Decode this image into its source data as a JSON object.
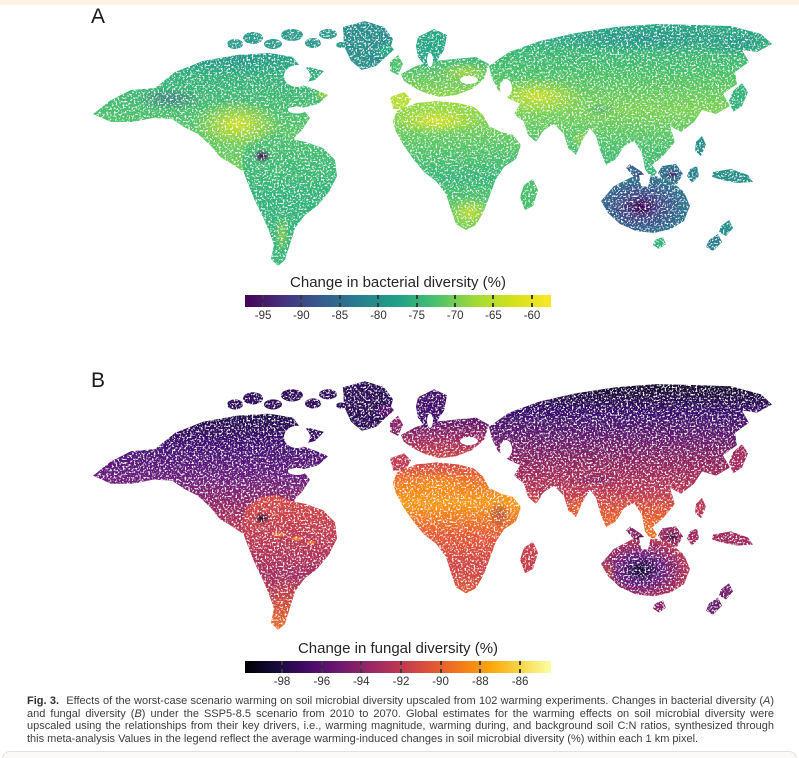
{
  "page": {
    "background_color": "#ffffff",
    "top_band_color": "#fbf4e3"
  },
  "figure": {
    "panel_a": {
      "label": "A",
      "map_alt": "Global map of warming-induced change in soil bacterial diversity (viridis color scale)",
      "colorbar": {
        "title": "Change in bacterial diversity (%)",
        "tick_labels": [
          "-95",
          "-90",
          "-85",
          "-80",
          "-75",
          "-70",
          "-65",
          "-60"
        ],
        "colormap_name": "viridis",
        "gradient_stops": [
          "#440154",
          "#46327e",
          "#365c8d",
          "#277f8e",
          "#1fa187",
          "#4ac16d",
          "#a0da39",
          "#d2e21b",
          "#fde725"
        ]
      }
    },
    "panel_b": {
      "label": "B",
      "map_alt": "Global map of warming-induced change in soil fungal diversity (inferno color scale)",
      "colorbar": {
        "title": "Change in fungal diversity (%)",
        "tick_labels": [
          "-98",
          "-96",
          "-94",
          "-92",
          "-90",
          "-88",
          "-86"
        ],
        "colormap_name": "inferno",
        "gradient_stops": [
          "#000004",
          "#160b39",
          "#420a68",
          "#6a176e",
          "#932667",
          "#bc3754",
          "#dd513a",
          "#f37819",
          "#fca50a",
          "#f6d746",
          "#fcffa4"
        ]
      }
    },
    "caption": {
      "fig_label": "Fig. 3.",
      "segments": [
        {
          "text": " Effects of the worst-case scenario warming on soil microbial diversity upscaled from 102 warming experiments. Changes in bacterial diversity (",
          "italic": false
        },
        {
          "text": "A",
          "italic": true
        },
        {
          "text": ") and fungal diversity (",
          "italic": false
        },
        {
          "text": "B",
          "italic": true
        },
        {
          "text": ") under the SSP5-8.5 scenario from 2010 to 2070. Global estimates for the warming effects on soil microbial diversity were upscaled using the relationships from their key drivers, i.e., warming magnitude, warming during, and background soil C:N ratios, synthesized through this meta-analysis  Values in the legend reflect the average warming-induced changes in soil microbial diversity (%) within each 1 km pixel.",
          "italic": false
        }
      ]
    }
  },
  "chart_data": [
    {
      "type": "heatmap",
      "subtype": "global_choropleth_map",
      "panel": "A",
      "title": "Change in bacterial diversity (%)",
      "colormap": "viridis",
      "colorbar_ticks": [
        -95,
        -90,
        -85,
        -80,
        -75,
        -70,
        -65,
        -60
      ],
      "colorbar_range_approx": [
        -98,
        -57
      ],
      "legend_position": "bottom-center",
      "tick_positions_pct": [
        5.9,
        18.4,
        31.0,
        43.6,
        56.1,
        68.7,
        81.2,
        93.8
      ],
      "regional_estimates": [
        {
          "region": "Arctic and boreal Canada / Siberia",
          "value": -76
        },
        {
          "region": "Central United States",
          "value": -63
        },
        {
          "region": "Sahara and Middle East",
          "value": -60
        },
        {
          "region": "Central Asia (Kazakhstan / Iran)",
          "value": -62
        },
        {
          "region": "Europe",
          "value": -66
        },
        {
          "region": "Amazon basin",
          "value": -70
        },
        {
          "region": "Peruvian Andes dark spot",
          "value": -95
        },
        {
          "region": "Southern Africa",
          "value": -63
        },
        {
          "region": "Central Australia dark region",
          "value": -90
        },
        {
          "region": "Indonesia / maritime Southeast Asia",
          "value": -84
        }
      ]
    },
    {
      "type": "heatmap",
      "subtype": "global_choropleth_map",
      "panel": "B",
      "title": "Change in fungal diversity (%)",
      "colormap": "inferno",
      "colorbar_ticks": [
        -98,
        -96,
        -94,
        -92,
        -90,
        -88,
        -86
      ],
      "colorbar_range_approx": [
        -99,
        -84.5
      ],
      "legend_position": "bottom-center",
      "tick_positions_pct": [
        12.1,
        25.1,
        38.0,
        51.0,
        63.9,
        76.9,
        89.9
      ],
      "regional_estimates": [
        {
          "region": "Arctic and boreal Canada / Siberia",
          "value": -97
        },
        {
          "region": "Mid-latitude North America and Europe",
          "value": -92
        },
        {
          "region": "Sahara and Sahel",
          "value": -86.5
        },
        {
          "region": "Tropical Africa and South America",
          "value": -89
        },
        {
          "region": "India and Southeast Asia",
          "value": -88
        },
        {
          "region": "Southern South America",
          "value": -88.5
        },
        {
          "region": "Central Australia dark region",
          "value": -97
        },
        {
          "region": "Greenland fringe",
          "value": -97.5
        }
      ]
    }
  ]
}
